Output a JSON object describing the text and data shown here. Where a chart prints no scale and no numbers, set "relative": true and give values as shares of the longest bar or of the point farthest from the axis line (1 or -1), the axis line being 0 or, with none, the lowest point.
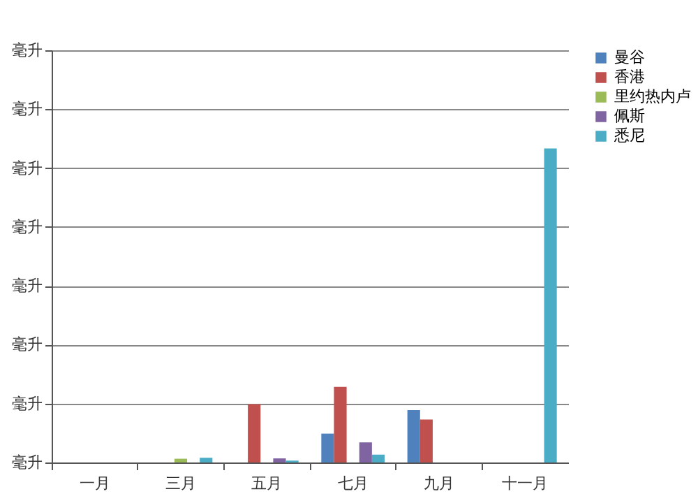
{
  "chart_data": {
    "type": "bar",
    "relative": true,
    "ylabel": "毫升",
    "categories": [
      "一月",
      "三月",
      "五月",
      "七月",
      "九月",
      "十一月"
    ],
    "series": [
      {
        "name": "曼谷",
        "color": "#4f81bd",
        "values": [
          0,
          0,
          0,
          0.092,
          0.167,
          0
        ]
      },
      {
        "name": "香港",
        "color": "#c0504d",
        "values": [
          0,
          0,
          0.186,
          0.241,
          0.137,
          0
        ]
      },
      {
        "name": "里约热内卢",
        "color": "#9bbb59",
        "values": [
          0,
          0.012,
          0,
          0,
          0,
          0
        ]
      },
      {
        "name": "佩斯",
        "color": "#8064a2",
        "values": [
          0,
          0,
          0.013,
          0.064,
          0,
          0
        ]
      },
      {
        "name": "悉尼",
        "color": "#4bacc6",
        "values": [
          0,
          0.015,
          0.006,
          0.025,
          0,
          1
        ]
      }
    ],
    "grid": "y",
    "legend": "right"
  }
}
